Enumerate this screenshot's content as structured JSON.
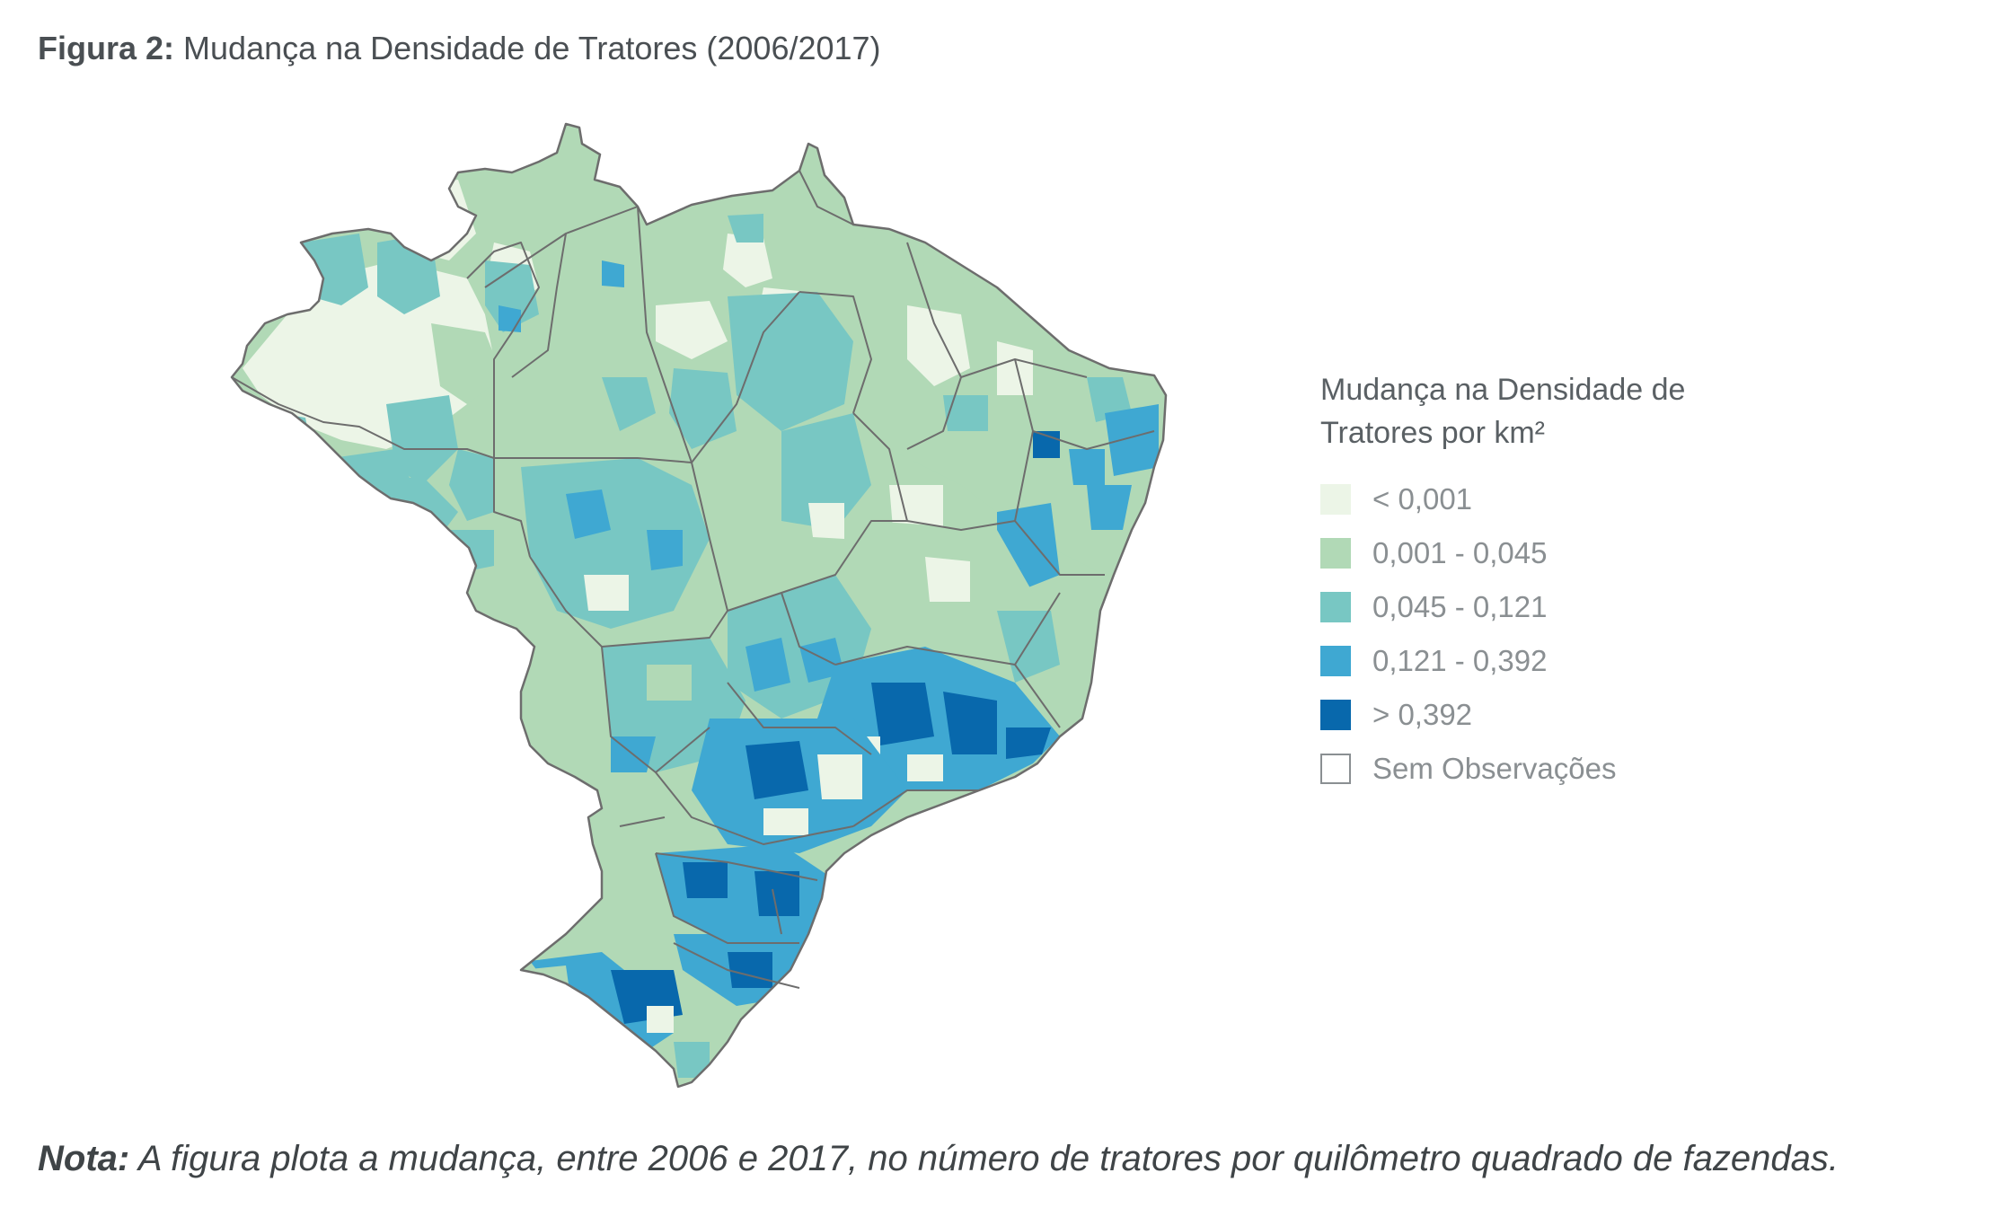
{
  "figure": {
    "label": "Figura 2:",
    "title": "Mudança na Densidade de Tratores (2006/2017)"
  },
  "legend": {
    "title_line1": "Mudança na Densidade de",
    "title_line2": "Tratores por km²",
    "items": [
      {
        "label": "< 0,001",
        "color": "#ecf5e7"
      },
      {
        "label": "0,001 - 0,045",
        "color": "#b1d9b6"
      },
      {
        "label": "0,045 - 0,121",
        "color": "#78c7c3"
      },
      {
        "label": "0,121 - 0,392",
        "color": "#3fa8d2"
      },
      {
        "label": "> 0,392",
        "color": "#0868ac"
      },
      {
        "label": "Sem Observações",
        "color": "#ffffff"
      }
    ]
  },
  "map": {
    "region": "Brazil",
    "border_color": "#6d6d6d"
  },
  "note": {
    "label": "Nota:",
    "text": "A figura plota a mudança, entre 2006 e 2017, no número de tratores por quilômetro quadrado de fazendas."
  }
}
